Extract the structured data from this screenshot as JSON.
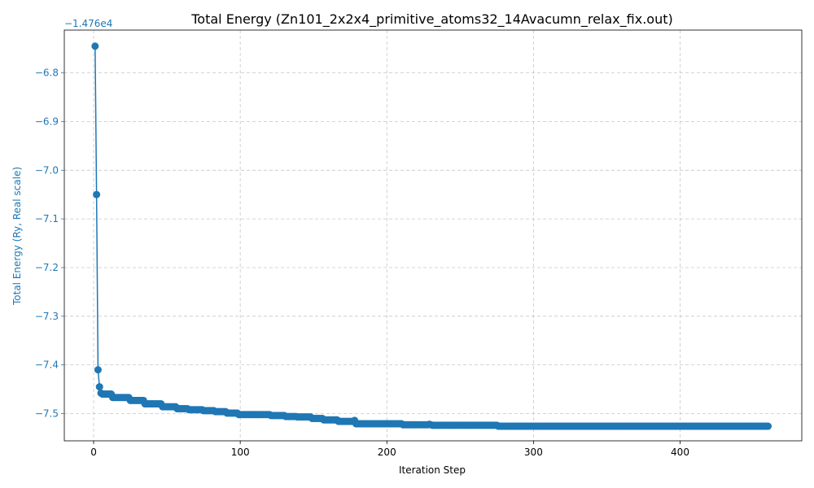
{
  "chart_data": {
    "type": "line",
    "title": "Total Energy (Zn101_2x2x4_primitive_atoms32_14Avacumn_relax_fix.out)",
    "xlabel": "Iteration Step",
    "ylabel": "Total Energy (Ry, Real scale)",
    "y_offset_label": "−1.476e4",
    "xlim": [
      -20,
      483
    ],
    "ylim": [
      -7.556,
      -6.712
    ],
    "x_ticks": [
      0,
      100,
      200,
      300,
      400
    ],
    "x_tick_labels": [
      "0",
      "100",
      "200",
      "300",
      "400"
    ],
    "y_ticks": [
      -6.8,
      -6.9,
      -7.0,
      -7.1,
      -7.2,
      -7.3,
      -7.4,
      -7.5
    ],
    "y_tick_labels": [
      "−6.8",
      "−6.9",
      "−7.0",
      "−7.1",
      "−7.2",
      "−7.3",
      "−7.4",
      "−7.5"
    ],
    "grid": true,
    "grid_style": "dashed",
    "marker": "circle",
    "color": "#1f77b4",
    "ylabel_color": "#1f77b4",
    "n_points": 460,
    "head_points": [
      [
        1,
        -6.745
      ],
      [
        2,
        -7.05
      ],
      [
        3,
        -7.41
      ],
      [
        4,
        -7.445
      ],
      [
        5,
        -7.458
      ]
    ],
    "plateau_segments": [
      [
        6,
        12,
        -7.46
      ],
      [
        13,
        24,
        -7.467
      ],
      [
        25,
        34,
        -7.473
      ],
      [
        35,
        46,
        -7.48
      ],
      [
        47,
        56,
        -7.486
      ],
      [
        57,
        64,
        -7.49
      ],
      [
        65,
        74,
        -7.492
      ],
      [
        75,
        82,
        -7.494
      ],
      [
        83,
        90,
        -7.496
      ],
      [
        91,
        98,
        -7.499
      ],
      [
        99,
        120,
        -7.502
      ],
      [
        121,
        130,
        -7.504
      ],
      [
        131,
        138,
        -7.506
      ],
      [
        139,
        148,
        -7.507
      ],
      [
        149,
        156,
        -7.51
      ],
      [
        157,
        166,
        -7.513
      ],
      [
        167,
        178,
        -7.516
      ],
      [
        179,
        210,
        -7.521
      ],
      [
        211,
        230,
        -7.523
      ],
      [
        231,
        275,
        -7.524
      ],
      [
        276,
        460,
        -7.526
      ]
    ],
    "spikes": [
      [
        178,
        -7.514
      ],
      [
        229,
        -7.522
      ]
    ]
  }
}
